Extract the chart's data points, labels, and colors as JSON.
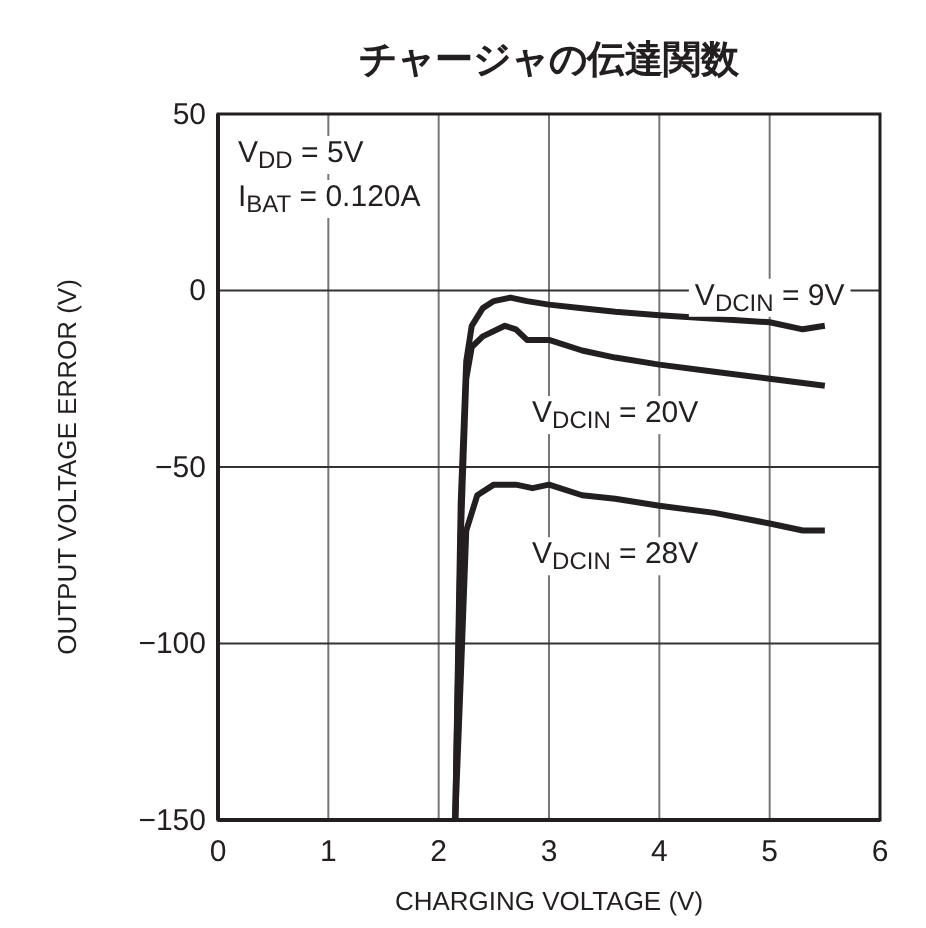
{
  "chart_data": {
    "type": "line",
    "title": "チャージャの伝達関数",
    "xlabel": "CHARGING VOLTAGE (V)",
    "ylabel": "OUTPUT VOLTAGE ERROR (V)",
    "xlim": [
      0,
      6
    ],
    "xticks": [
      0,
      1,
      2,
      3,
      4,
      5,
      6
    ],
    "ylim": [
      -150,
      50
    ],
    "yticks": [
      -150,
      -100,
      -50,
      0,
      50
    ],
    "grid": true,
    "line_style": "solid",
    "marker": "none",
    "annotations": [
      "V$_{DD}$ = 5V",
      "I$_{BAT}$ = 0.120A"
    ],
    "series": [
      {
        "name": "V$_{DCIN}$ = 9V",
        "color": "#231f20",
        "x": [
          2.15,
          2.2,
          2.25,
          2.3,
          2.4,
          2.5,
          2.65,
          2.8,
          3,
          3.3,
          3.6,
          4,
          4.5,
          5,
          5.3,
          5.5
        ],
        "values": [
          -150,
          -60,
          -20,
          -10,
          -5,
          -3,
          -2,
          -3,
          -4,
          -5,
          -6,
          -7,
          -8,
          -9,
          -11,
          -10
        ]
      },
      {
        "name": "V$_{DCIN}$ = 20V",
        "color": "#231f20",
        "x": [
          2.15,
          2.2,
          2.25,
          2.3,
          2.4,
          2.6,
          2.7,
          2.8,
          3,
          3.3,
          3.6,
          4,
          4.5,
          5,
          5.5
        ],
        "values": [
          -150,
          -70,
          -25,
          -16,
          -13,
          -10,
          -11,
          -14,
          -14,
          -17,
          -19,
          -21,
          -23,
          -25,
          -27
        ]
      },
      {
        "name": "V$_{DCIN}$ = 28V",
        "color": "#231f20",
        "x": [
          2.15,
          2.2,
          2.25,
          2.35,
          2.5,
          2.7,
          2.85,
          3,
          3.3,
          3.6,
          4,
          4.5,
          5,
          5.3,
          5.5
        ],
        "values": [
          -150,
          -110,
          -68,
          -58,
          -55,
          -55,
          -56,
          -55,
          -58,
          -59,
          -61,
          -63,
          -66,
          -68,
          -68
        ]
      }
    ]
  }
}
